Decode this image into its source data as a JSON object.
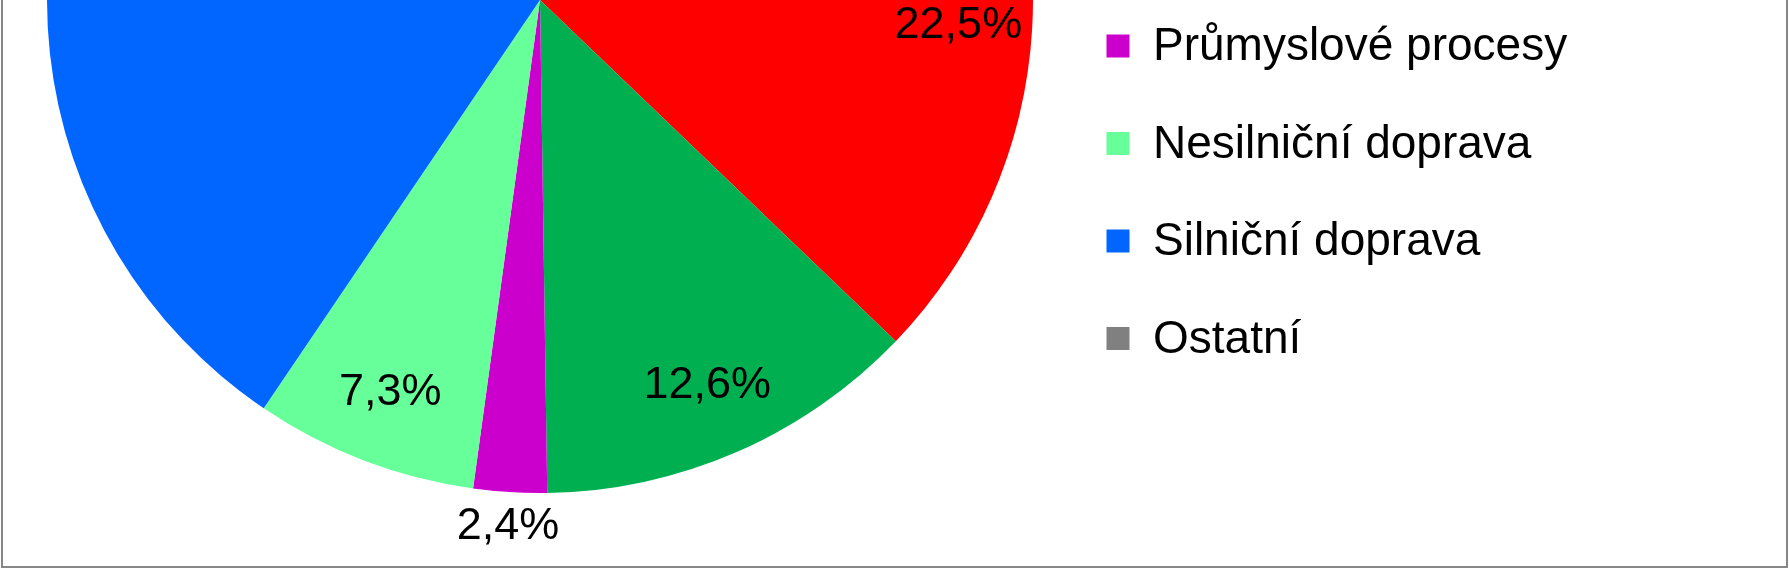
{
  "chart_data": {
    "type": "pie",
    "categories": [
      null,
      null,
      "Průmyslové procesy",
      "Nesilniční doprava",
      "Silniční doprava",
      "Ostatní"
    ],
    "values": [
      22.5,
      12.6,
      2.4,
      7.3,
      55.2,
      null
    ],
    "colors": [
      "#ff0000",
      "#00b050",
      "#cc00cc",
      "#66ff99",
      "#0066ff",
      "#808080"
    ],
    "value_labels": [
      "22,5%",
      "12,6%",
      "2,4%",
      "7,3%",
      null,
      null
    ],
    "legend": "right"
  }
}
